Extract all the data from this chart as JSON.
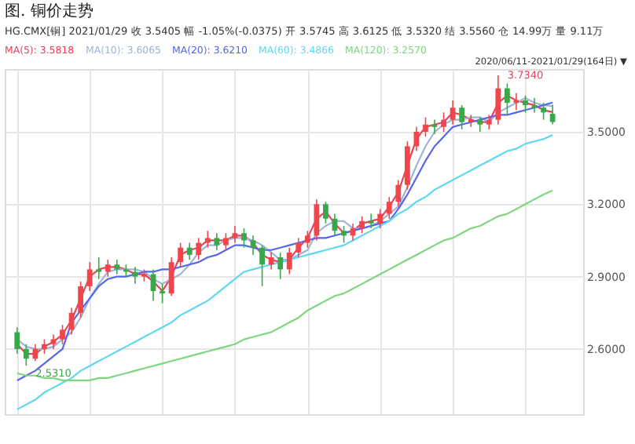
{
  "chart_data": {
    "type": "candlestick",
    "title": "图. 铜价走势",
    "categories": [
      null,
      null,
      null,
      null,
      null,
      null,
      null,
      null,
      null,
      null,
      null,
      null,
      null,
      null,
      null,
      null,
      null,
      null,
      null,
      null,
      null,
      null,
      null,
      null,
      null,
      null,
      null,
      null,
      null,
      null,
      null,
      null,
      null,
      null,
      null,
      null,
      null,
      null,
      null,
      null,
      null,
      null,
      null,
      null,
      null,
      null,
      null,
      null,
      null,
      null,
      null,
      null,
      null,
      null,
      null,
      null,
      null,
      null,
      null,
      null
    ],
    "ohlc": [
      [
        2.67,
        2.69,
        2.58,
        2.6
      ],
      [
        2.6,
        2.62,
        2.531,
        2.56
      ],
      [
        2.56,
        2.62,
        2.55,
        2.6
      ],
      [
        2.6,
        2.64,
        2.58,
        2.62
      ],
      [
        2.62,
        2.66,
        2.6,
        2.64
      ],
      [
        2.64,
        2.7,
        2.62,
        2.68
      ],
      [
        2.68,
        2.77,
        2.66,
        2.75
      ],
      [
        2.75,
        2.88,
        2.73,
        2.86
      ],
      [
        2.86,
        2.96,
        2.84,
        2.93
      ],
      [
        2.93,
        2.98,
        2.89,
        2.92
      ],
      [
        2.92,
        2.97,
        2.9,
        2.95
      ],
      [
        2.95,
        2.97,
        2.91,
        2.93
      ],
      [
        2.93,
        2.95,
        2.9,
        2.92
      ],
      [
        2.92,
        2.94,
        2.87,
        2.9
      ],
      [
        2.9,
        2.93,
        2.88,
        2.91
      ],
      [
        2.91,
        2.93,
        2.8,
        2.84
      ],
      [
        2.84,
        2.87,
        2.79,
        2.83
      ],
      [
        2.83,
        2.98,
        2.82,
        2.96
      ],
      [
        2.96,
        3.04,
        2.94,
        3.02
      ],
      [
        3.02,
        3.04,
        2.97,
        2.99
      ],
      [
        2.99,
        3.06,
        2.97,
        3.04
      ],
      [
        3.04,
        3.09,
        3.02,
        3.06
      ],
      [
        3.06,
        3.08,
        3.01,
        3.03
      ],
      [
        3.03,
        3.08,
        3.01,
        3.06
      ],
      [
        3.06,
        3.11,
        3.04,
        3.08
      ],
      [
        3.08,
        3.1,
        3.02,
        3.05
      ],
      [
        3.05,
        3.07,
        2.99,
        3.02
      ],
      [
        3.02,
        3.03,
        2.86,
        2.95
      ],
      [
        2.95,
        3.0,
        2.93,
        2.98
      ],
      [
        2.98,
        3.0,
        2.89,
        2.93
      ],
      [
        2.93,
        3.02,
        2.91,
        3.0
      ],
      [
        3.0,
        3.06,
        2.98,
        3.04
      ],
      [
        3.04,
        3.09,
        3.02,
        3.07
      ],
      [
        3.07,
        3.22,
        3.05,
        3.2
      ],
      [
        3.2,
        3.21,
        3.12,
        3.14
      ],
      [
        3.14,
        3.16,
        3.07,
        3.09
      ],
      [
        3.09,
        3.11,
        3.04,
        3.07
      ],
      [
        3.07,
        3.12,
        3.05,
        3.1
      ],
      [
        3.1,
        3.15,
        3.08,
        3.13
      ],
      [
        3.13,
        3.16,
        3.1,
        3.12
      ],
      [
        3.12,
        3.18,
        3.1,
        3.16
      ],
      [
        3.16,
        3.23,
        3.14,
        3.21
      ],
      [
        3.21,
        3.3,
        3.19,
        3.28
      ],
      [
        3.28,
        3.46,
        3.26,
        3.44
      ],
      [
        3.44,
        3.52,
        3.42,
        3.5
      ],
      [
        3.5,
        3.56,
        3.48,
        3.53
      ],
      [
        3.53,
        3.55,
        3.49,
        3.52
      ],
      [
        3.52,
        3.58,
        3.5,
        3.55
      ],
      [
        3.55,
        3.63,
        3.53,
        3.6
      ],
      [
        3.6,
        3.61,
        3.51,
        3.54
      ],
      [
        3.54,
        3.57,
        3.52,
        3.55
      ],
      [
        3.55,
        3.56,
        3.5,
        3.53
      ],
      [
        3.53,
        3.57,
        3.51,
        3.55
      ],
      [
        3.55,
        3.734,
        3.53,
        3.68
      ],
      [
        3.68,
        3.7,
        3.57,
        3.62
      ],
      [
        3.62,
        3.66,
        3.59,
        3.63
      ],
      [
        3.63,
        3.65,
        3.58,
        3.61
      ],
      [
        3.61,
        3.64,
        3.58,
        3.6
      ],
      [
        3.6,
        3.62,
        3.55,
        3.58
      ],
      [
        3.5745,
        3.6125,
        3.532,
        3.5405
      ]
    ],
    "colors": [
      "#3aa84a",
      "#3aa84a",
      "#f0464b",
      "#f0464b",
      "#f0464b",
      "#f0464b",
      "#f0464b",
      "#f0464b",
      "#f0464b",
      "#3aa84a",
      "#f0464b",
      "#3aa84a",
      "#3aa84a",
      "#3aa84a",
      "#f0464b",
      "#3aa84a",
      "#3aa84a",
      "#f0464b",
      "#f0464b",
      "#3aa84a",
      "#f0464b",
      "#f0464b",
      "#3aa84a",
      "#f0464b",
      "#f0464b",
      "#3aa84a",
      "#3aa84a",
      "#3aa84a",
      "#f0464b",
      "#3aa84a",
      "#f0464b",
      "#f0464b",
      "#f0464b",
      "#f0464b",
      "#3aa84a",
      "#3aa84a",
      "#3aa84a",
      "#f0464b",
      "#f0464b",
      "#3aa84a",
      "#f0464b",
      "#f0464b",
      "#f0464b",
      "#f0464b",
      "#f0464b",
      "#f0464b",
      "#3aa84a",
      "#f0464b",
      "#f0464b",
      "#3aa84a",
      "#f0464b",
      "#3aa84a",
      "#f0464b",
      "#f0464b",
      "#3aa84a",
      "#f0464b",
      "#3aa84a",
      "#3aa84a",
      "#3aa84a",
      "#3aa84a"
    ],
    "series": [
      {
        "type": "line",
        "name": "MA(5): 3.5818",
        "color": "#e8435a",
        "values": [
          2.62,
          2.58,
          2.58,
          2.61,
          2.63,
          2.66,
          2.72,
          2.81,
          2.9,
          2.93,
          2.94,
          2.94,
          2.93,
          2.91,
          2.91,
          2.88,
          2.84,
          2.9,
          2.99,
          3.01,
          3.02,
          3.05,
          3.05,
          3.05,
          3.07,
          3.07,
          3.04,
          2.99,
          2.97,
          2.96,
          2.97,
          3.02,
          3.06,
          3.14,
          3.17,
          3.12,
          3.08,
          3.09,
          3.12,
          3.13,
          3.14,
          3.19,
          3.25,
          3.36,
          3.47,
          3.52,
          3.53,
          3.54,
          3.58,
          3.57,
          3.55,
          3.54,
          3.54,
          3.62,
          3.65,
          3.63,
          3.62,
          3.61,
          3.59,
          3.5818
        ]
      },
      {
        "type": "line",
        "name": "MA(10): 3.6065",
        "color": "#9fb4d8",
        "values": [
          2.64,
          2.61,
          2.6,
          2.6,
          2.61,
          2.64,
          2.67,
          2.73,
          2.81,
          2.87,
          2.92,
          2.93,
          2.93,
          2.93,
          2.92,
          2.89,
          2.87,
          2.89,
          2.91,
          2.95,
          3.0,
          3.03,
          3.03,
          3.05,
          3.06,
          3.06,
          3.05,
          3.03,
          3.0,
          2.97,
          2.97,
          2.99,
          3.01,
          3.08,
          3.11,
          3.13,
          3.13,
          3.1,
          3.1,
          3.11,
          3.13,
          3.16,
          3.19,
          3.27,
          3.36,
          3.44,
          3.5,
          3.53,
          3.55,
          3.55,
          3.56,
          3.56,
          3.54,
          3.58,
          3.6,
          3.62,
          3.64,
          3.62,
          3.61,
          3.6065
        ]
      },
      {
        "type": "line",
        "name": "MA(20): 3.6210",
        "color": "#5566ee",
        "values": [
          2.47,
          2.49,
          2.51,
          2.54,
          2.57,
          2.6,
          2.71,
          2.76,
          2.81,
          2.86,
          2.89,
          2.9,
          2.9,
          2.91,
          2.92,
          2.92,
          2.93,
          2.93,
          2.94,
          2.95,
          2.96,
          2.98,
          2.99,
          3.01,
          3.03,
          3.03,
          3.02,
          3.01,
          3.01,
          3.02,
          3.03,
          3.04,
          3.05,
          3.06,
          3.06,
          3.07,
          3.08,
          3.09,
          3.1,
          3.11,
          3.12,
          3.13,
          3.18,
          3.24,
          3.31,
          3.38,
          3.44,
          3.48,
          3.52,
          3.53,
          3.54,
          3.55,
          3.56,
          3.57,
          3.57,
          3.58,
          3.59,
          3.6,
          3.61,
          3.621
        ]
      },
      {
        "type": "line",
        "name": "MA(60): 3.4866",
        "color": "#5fd8ee",
        "values": [
          2.35,
          2.37,
          2.39,
          2.42,
          2.44,
          2.46,
          2.48,
          2.51,
          2.53,
          2.55,
          2.57,
          2.59,
          2.61,
          2.63,
          2.65,
          2.67,
          2.69,
          2.71,
          2.74,
          2.76,
          2.78,
          2.8,
          2.83,
          2.86,
          2.89,
          2.92,
          2.93,
          2.94,
          2.95,
          2.96,
          2.97,
          2.98,
          2.99,
          3.0,
          3.01,
          3.02,
          3.03,
          3.05,
          3.07,
          3.09,
          3.11,
          3.13,
          3.16,
          3.18,
          3.21,
          3.23,
          3.26,
          3.28,
          3.3,
          3.32,
          3.34,
          3.36,
          3.38,
          3.4,
          3.42,
          3.43,
          3.45,
          3.46,
          3.47,
          3.4866
        ]
      },
      {
        "type": "line",
        "name": "MA(120): 3.2570",
        "color": "#7ed67e",
        "values": [
          2.5,
          2.49,
          2.49,
          2.48,
          2.48,
          2.47,
          2.47,
          2.47,
          2.47,
          2.48,
          2.48,
          2.49,
          2.5,
          2.51,
          2.52,
          2.53,
          2.54,
          2.55,
          2.56,
          2.57,
          2.58,
          2.59,
          2.6,
          2.61,
          2.62,
          2.64,
          2.65,
          2.66,
          2.67,
          2.69,
          2.71,
          2.73,
          2.76,
          2.78,
          2.8,
          2.82,
          2.83,
          2.85,
          2.87,
          2.89,
          2.91,
          2.93,
          2.95,
          2.97,
          2.99,
          3.01,
          3.03,
          3.05,
          3.06,
          3.08,
          3.1,
          3.11,
          3.13,
          3.15,
          3.16,
          3.18,
          3.2,
          3.22,
          3.24,
          3.257
        ]
      }
    ],
    "ylim": [
      2.33,
      3.76
    ],
    "yticks": [
      {
        "value": 2.6,
        "label": "2.6000"
      },
      {
        "value": 2.9,
        "label": "2.9000"
      },
      {
        "value": 3.2,
        "label": "3.2000"
      },
      {
        "value": 3.5,
        "label": "3.5000"
      }
    ],
    "grid": true,
    "legend": "top left",
    "annotations": [
      "HG.CMX[铜]  2021/01/29  收 3.5405  幅 -1.05%(-0.0375)  开 3.5745  高 3.6125  低 3.5320  结 3.5560  仓 14.99万  量 9.11万",
      "2020/06/11-2021/01/29(164日) ▼",
      "3.7340",
      "2.5310"
    ]
  }
}
